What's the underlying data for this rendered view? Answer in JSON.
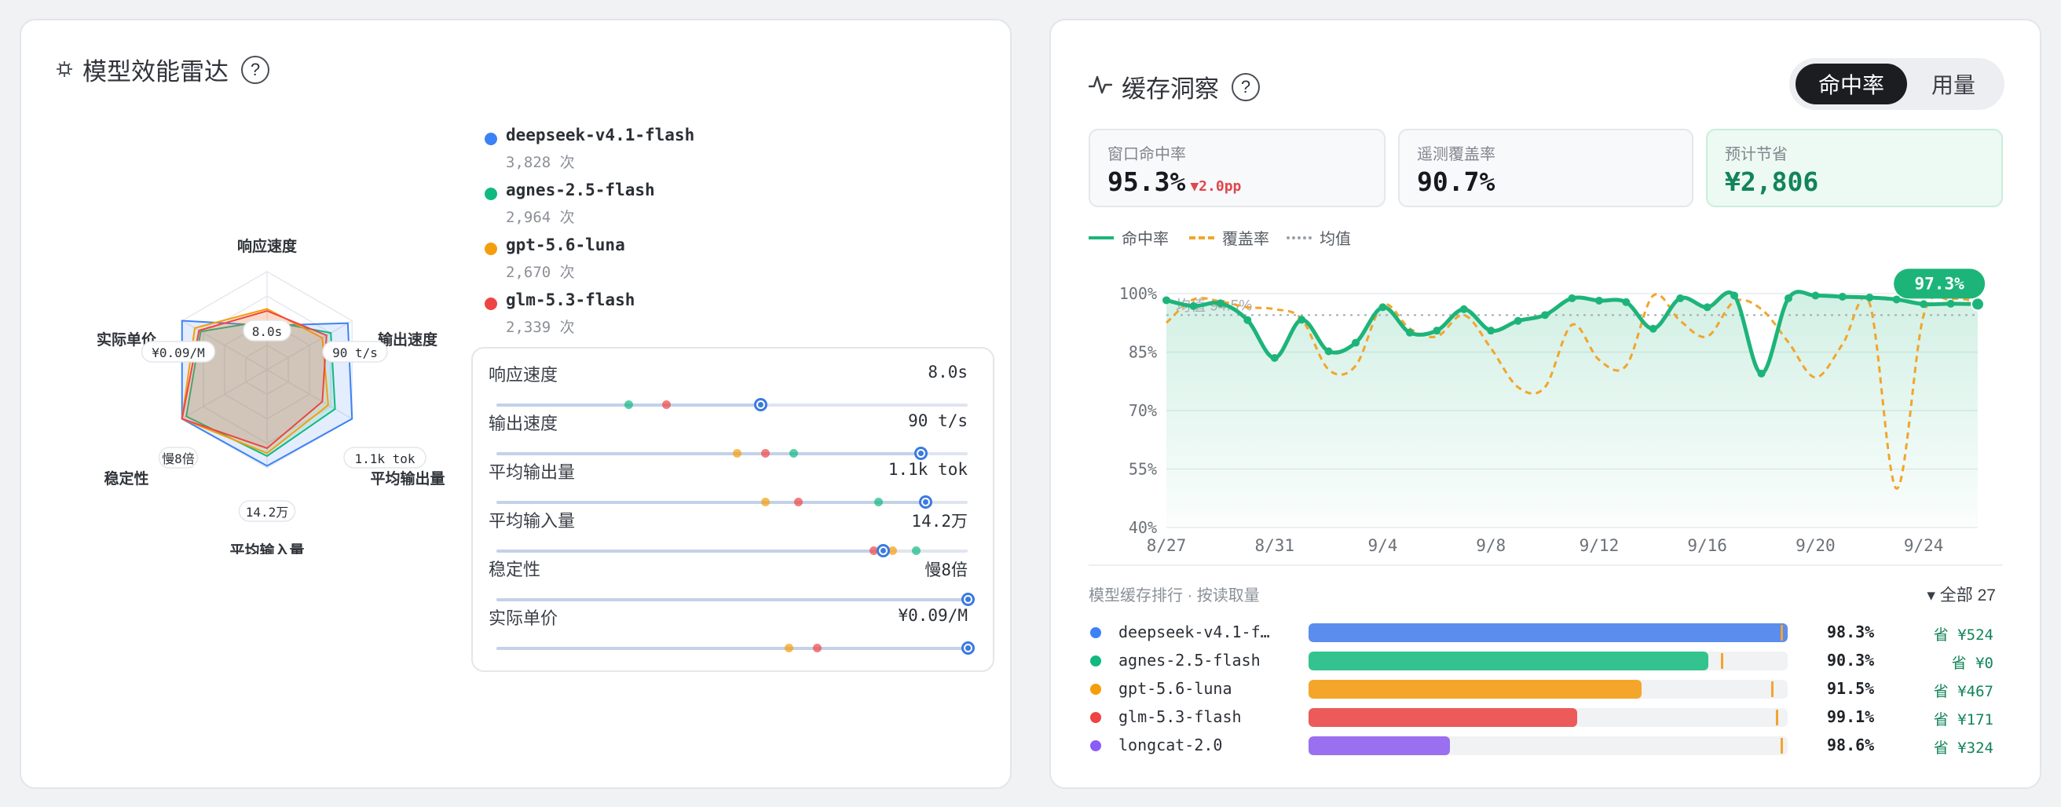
{
  "left_card": {
    "title": "模型效能雷达",
    "help": "?",
    "models": [
      {
        "name": "deepseek-v4.1-flash",
        "count": "3,828 次",
        "color": "#3b82f6"
      },
      {
        "name": "agnes-2.5-flash",
        "count": "2,964 次",
        "color": "#10b981"
      },
      {
        "name": "gpt-5.6-luna",
        "count": "2,670 次",
        "color": "#f59e0b"
      },
      {
        "name": "glm-5.3-flash",
        "count": "2,339 次",
        "color": "#ef4444"
      }
    ],
    "radar": {
      "axes": [
        "响应速度",
        "输出速度",
        "平均输出量",
        "平均输入量",
        "稳定性",
        "实际单价"
      ],
      "values": [
        "8.0s",
        "90 t/s",
        "1.1k tok",
        "14.2万",
        "慢8倍",
        "¥0.09/M"
      ],
      "series": [
        {
          "model": "deepseek-v4.1-flash",
          "scores": [
            0.45,
            0.95,
            1.0,
            0.98,
            1.0,
            1.0
          ]
        },
        {
          "model": "agnes-2.5-flash",
          "scores": [
            0.5,
            0.75,
            0.8,
            0.88,
            0.95,
            0.78
          ]
        },
        {
          "model": "gpt-5.6-luna",
          "scores": [
            0.62,
            0.65,
            0.72,
            0.85,
            1.0,
            0.85
          ]
        },
        {
          "model": "glm-5.3-flash",
          "scores": [
            0.6,
            0.7,
            0.65,
            0.8,
            1.0,
            0.8
          ]
        }
      ]
    },
    "metrics": [
      {
        "label": "响应速度",
        "value": "8.0s",
        "fill": 0.56,
        "points": [
          {
            "pos": 0.28,
            "color": "#10b981"
          },
          {
            "pos": 0.36,
            "color": "#ef4444"
          }
        ],
        "knob": 0.56
      },
      {
        "label": "输出速度",
        "value": "90 t/s",
        "fill": 0.9,
        "points": [
          {
            "pos": 0.51,
            "color": "#f59e0b"
          },
          {
            "pos": 0.57,
            "color": "#ef4444"
          },
          {
            "pos": 0.63,
            "color": "#10b981"
          }
        ],
        "knob": 0.9
      },
      {
        "label": "平均输出量",
        "value": "1.1k tok",
        "fill": 0.91,
        "points": [
          {
            "pos": 0.57,
            "color": "#f59e0b"
          },
          {
            "pos": 0.64,
            "color": "#ef4444"
          },
          {
            "pos": 0.81,
            "color": "#10b981"
          }
        ],
        "knob": 0.91
      },
      {
        "label": "平均输入量",
        "value": "14.2万",
        "fill": 0.82,
        "points": [
          {
            "pos": 0.8,
            "color": "#ef4444"
          },
          {
            "pos": 0.84,
            "color": "#f59e0b"
          },
          {
            "pos": 0.89,
            "color": "#10b981"
          }
        ],
        "knob": 0.82
      },
      {
        "label": "稳定性",
        "value": "慢8倍",
        "fill": 1.0,
        "points": [],
        "knob": 1.0
      },
      {
        "label": "实际单价",
        "value": "¥0.09/M",
        "fill": 1.0,
        "points": [
          {
            "pos": 0.62,
            "color": "#f59e0b"
          },
          {
            "pos": 0.68,
            "color": "#ef4444"
          }
        ],
        "knob": 1.0
      }
    ]
  },
  "right_card": {
    "title": "缓存洞察",
    "help": "?",
    "segment": {
      "active": "命中率",
      "inactive": "用量"
    },
    "stats": [
      {
        "label": "窗口命中率",
        "value": "95.3%",
        "delta": "▼2.0pp"
      },
      {
        "label": "遥测覆盖率",
        "value": "90.7%",
        "delta": ""
      },
      {
        "label": "预计节省",
        "value": "¥2,806",
        "delta": ""
      }
    ],
    "legend": {
      "hit": "命中率",
      "cover": "覆盖率",
      "mean": "均值"
    },
    "ranking": {
      "heading": "模型缓存排行 · 按读取量",
      "filter": "▾ 全部 27",
      "rows": [
        {
          "name": "deepseek-v4.1-flash",
          "display": "deepseek-v4.1-f…",
          "color": "#3b82f6",
          "bar_color": "#5b8def",
          "share": 1.0,
          "marker": 0.985,
          "pct": "98.3%",
          "save": "省 ¥524"
        },
        {
          "name": "agnes-2.5-flash",
          "display": "agnes-2.5-flash",
          "color": "#10b981",
          "bar_color": "#34c38f",
          "share": 0.835,
          "marker": 0.86,
          "pct": "90.3%",
          "save": "省 ¥0"
        },
        {
          "name": "gpt-5.6-luna",
          "display": "gpt-5.6-luna",
          "color": "#f59e0b",
          "bar_color": "#f4a62a",
          "share": 0.695,
          "marker": 0.965,
          "pct": "91.5%",
          "save": "省 ¥467"
        },
        {
          "name": "glm-5.3-flash",
          "display": "glm-5.3-flash",
          "color": "#ef4444",
          "bar_color": "#ec5a5a",
          "share": 0.56,
          "marker": 0.975,
          "pct": "99.1%",
          "save": "省 ¥171"
        },
        {
          "name": "longcat-2.0",
          "display": "longcat-2.0",
          "color": "#8b5cf6",
          "bar_color": "#9a6ff0",
          "share": 0.295,
          "marker": 0.985,
          "pct": "98.6%",
          "save": "省 ¥324"
        }
      ]
    }
  },
  "chart_data": {
    "type": "line",
    "title": "",
    "xlabel": "",
    "ylabel": "",
    "ylim": [
      40,
      100
    ],
    "yticks": [
      "100%",
      "85%",
      "70%",
      "55%",
      "40%"
    ],
    "ytick_values": [
      100,
      85,
      70,
      55,
      40
    ],
    "xtick_labels": [
      "8/27",
      "8/31",
      "9/4",
      "9/8",
      "9/12",
      "9/16",
      "9/20",
      "9/24"
    ],
    "x": [
      "8/27",
      "8/28",
      "8/29",
      "8/30",
      "8/31",
      "9/1",
      "9/2",
      "9/3",
      "9/4",
      "9/5",
      "9/6",
      "9/7",
      "9/8",
      "9/9",
      "9/10",
      "9/11",
      "9/12",
      "9/13",
      "9/14",
      "9/15",
      "9/16",
      "9/17",
      "9/18",
      "9/19",
      "9/20",
      "9/21",
      "9/22",
      "9/23",
      "9/24",
      "9/25",
      "9/26"
    ],
    "mean": {
      "label": "均值 94.5%",
      "value": 94.5
    },
    "series": [
      {
        "name": "命中率",
        "color": "#1db47a",
        "values": [
          98.3,
          96.8,
          97.5,
          93.2,
          83.5,
          93.3,
          85.2,
          87.4,
          96.5,
          90.0,
          90.5,
          96.0,
          90.5,
          93.0,
          94.5,
          98.8,
          98.2,
          97.8,
          91.0,
          98.8,
          96.5,
          99.5,
          79.5,
          98.8,
          99.5,
          99.2,
          99.0,
          98.5,
          97.3,
          97.4,
          97.3
        ]
      },
      {
        "name": "覆盖率",
        "color": "#f2a52b",
        "values": [
          92.5,
          98.5,
          98.0,
          96.5,
          96.0,
          93.5,
          80.5,
          81.5,
          97.0,
          91.0,
          89.0,
          94.5,
          86.0,
          76.0,
          76.0,
          92.0,
          83.0,
          81.5,
          99.5,
          93.0,
          89.0,
          98.0,
          96.0,
          87.5,
          78.5,
          87.0,
          97.5,
          50.0,
          94.5,
          98.5,
          98.0
        ]
      }
    ],
    "callout": "97.3%"
  }
}
